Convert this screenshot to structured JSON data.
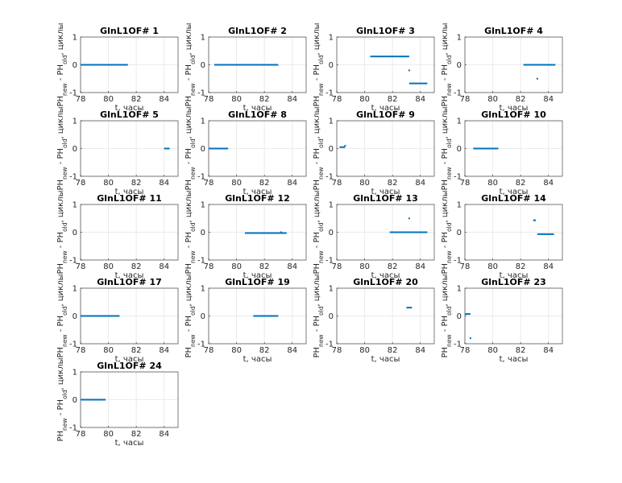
{
  "chart_data": {
    "type": "scatter",
    "layout": "subplot grid, 5 rows x 4 columns",
    "series_color": "#0072BD",
    "xlabel": "t, часы",
    "ylabel": {
      "base": "PH",
      "new_sub": "new",
      "mid": " - PH",
      "old_sub": "old",
      "tail": ", циклы"
    },
    "xlim": [
      78,
      85
    ],
    "ylim": [
      -1,
      1
    ],
    "xticks": [
      "78",
      "80",
      "82",
      "84"
    ],
    "yticks": [
      "-1",
      "0",
      "1"
    ],
    "grid": true,
    "panels": [
      {
        "title": "GlnL1OF# 1",
        "segments": [
          {
            "x0": 78.0,
            "x1": 81.4,
            "y": 0.0
          }
        ],
        "points": []
      },
      {
        "title": "GlnL1OF# 2",
        "segments": [
          {
            "x0": 78.4,
            "x1": 83.0,
            "y": 0.0
          }
        ],
        "points": []
      },
      {
        "title": "GlnL1OF# 3",
        "segments": [
          {
            "x0": 80.4,
            "x1": 83.2,
            "y": 0.3
          },
          {
            "x0": 83.2,
            "x1": 84.5,
            "y": -0.67
          }
        ],
        "points": [
          {
            "x": 83.2,
            "y": -0.2
          }
        ]
      },
      {
        "title": "GlnL1OF# 4",
        "segments": [
          {
            "x0": 82.2,
            "x1": 84.5,
            "y": 0.0
          }
        ],
        "points": [
          {
            "x": 83.2,
            "y": -0.5
          }
        ]
      },
      {
        "title": "GlnL1OF# 5",
        "segments": [
          {
            "x0": 84.0,
            "x1": 84.4,
            "y": 0.0
          }
        ],
        "points": []
      },
      {
        "title": "GlnL1OF# 8",
        "segments": [
          {
            "x0": 78.0,
            "x1": 79.4,
            "y": 0.0
          }
        ],
        "points": []
      },
      {
        "title": "GlnL1OF# 9",
        "segments": [
          {
            "x0": 78.2,
            "x1": 78.6,
            "y": 0.05
          }
        ],
        "points": [
          {
            "x": 78.6,
            "y": 0.1
          }
        ]
      },
      {
        "title": "GlnL1OF# 10",
        "segments": [
          {
            "x0": 78.6,
            "x1": 80.4,
            "y": 0.0
          }
        ],
        "points": []
      },
      {
        "title": "GlnL1OF# 11",
        "segments": [],
        "points": []
      },
      {
        "title": "GlnL1OF# 12",
        "segments": [
          {
            "x0": 80.6,
            "x1": 83.6,
            "y": -0.03
          }
        ],
        "points": [
          {
            "x": 83.2,
            "y": 0.0
          }
        ]
      },
      {
        "title": "GlnL1OF# 13",
        "segments": [
          {
            "x0": 81.8,
            "x1": 84.5,
            "y": 0.0
          }
        ],
        "points": [
          {
            "x": 83.2,
            "y": 0.5
          }
        ]
      },
      {
        "title": "GlnL1OF# 14",
        "segments": [
          {
            "x0": 82.9,
            "x1": 83.1,
            "y": 0.43
          },
          {
            "x0": 83.2,
            "x1": 84.4,
            "y": -0.07
          }
        ],
        "points": []
      },
      {
        "title": "GlnL1OF# 17",
        "segments": [
          {
            "x0": 78.0,
            "x1": 80.8,
            "y": 0.0
          }
        ],
        "points": []
      },
      {
        "title": "GlnL1OF# 19",
        "segments": [
          {
            "x0": 81.2,
            "x1": 83.0,
            "y": 0.0
          }
        ],
        "points": []
      },
      {
        "title": "GlnL1OF# 20",
        "segments": [
          {
            "x0": 83.0,
            "x1": 83.4,
            "y": 0.3
          }
        ],
        "points": []
      },
      {
        "title": "GlnL1OF# 23",
        "segments": [
          {
            "x0": 78.0,
            "x1": 78.4,
            "y": 0.07
          }
        ],
        "points": [
          {
            "x": 78.4,
            "y": -0.8
          }
        ]
      },
      {
        "title": "GlnL1OF# 24",
        "segments": [
          {
            "x0": 78.0,
            "x1": 79.8,
            "y": 0.0
          }
        ],
        "points": []
      }
    ]
  }
}
